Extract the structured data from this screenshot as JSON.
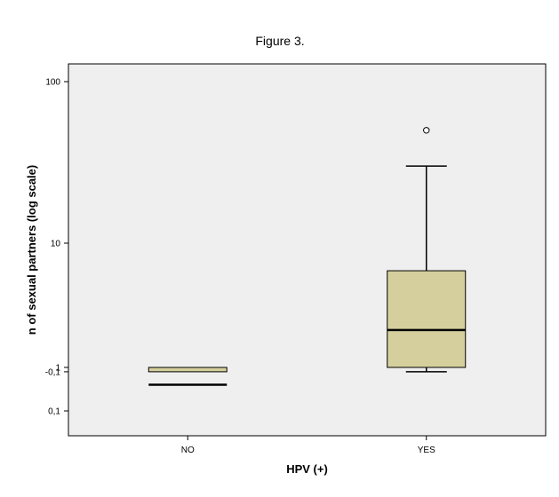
{
  "chart_data": {
    "type": "boxplot",
    "title": "Figure 3.",
    "xlabel": "HPV (+)",
    "ylabel": "n of sexual partners (log scale)",
    "y_scale": "log-like (printed ticks)",
    "yticks": [
      {
        "value": 100,
        "label": "100"
      },
      {
        "value": 10,
        "label": "10"
      },
      {
        "value": 1,
        "label": "1"
      },
      {
        "value": 0.1,
        "label": "0,1"
      },
      {
        "value": -0.1,
        "label": "-0,1"
      }
    ],
    "grid": false,
    "legend": "none",
    "colors": {
      "plot_bg": "#efefef",
      "box_fill": "#d4cf9c",
      "box_stroke": "#000000"
    },
    "categories": [
      "NO",
      "YES"
    ],
    "boxes": [
      {
        "category": "NO",
        "whisker_low": -0.1,
        "q1": -0.1,
        "median": 0.4,
        "q3": 1,
        "whisker_high": 1,
        "outliers": []
      },
      {
        "category": "YES",
        "whisker_low": -0.1,
        "q1": 1,
        "median": 2,
        "q3": 6,
        "whisker_high": 30,
        "outliers": [
          50
        ]
      }
    ]
  }
}
